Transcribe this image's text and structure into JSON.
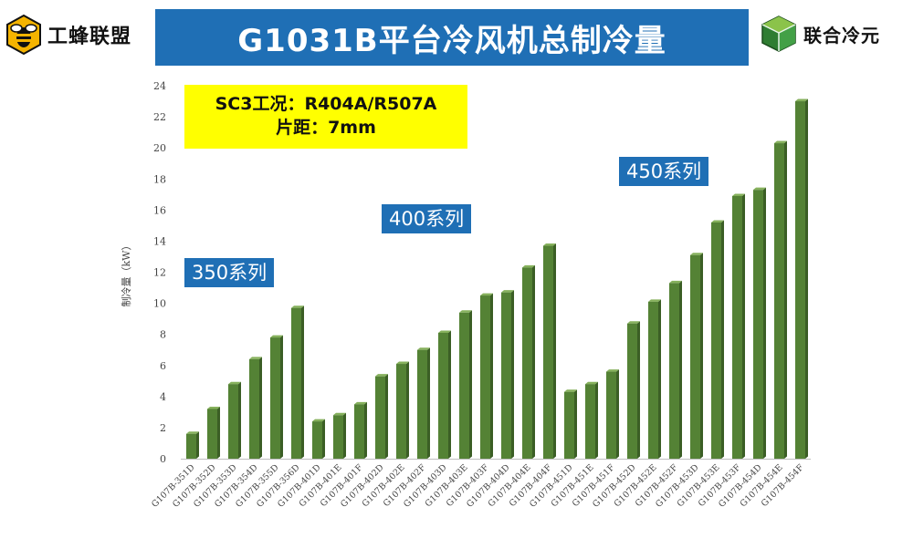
{
  "header": {
    "left_logo_text": "工蜂联盟",
    "right_logo_text": "联合冷元",
    "title": "G1031B平台冷风机总制冷量"
  },
  "info": {
    "line1": "SC3工况：R404A/R507A",
    "line2": "片距：7mm"
  },
  "series_labels": {
    "s350": "350系列",
    "s400": "400系列",
    "s450": "450系列"
  },
  "colors": {
    "bar": "#548235",
    "bar_dark": "#3b5e25",
    "bar_top": "#86b15c",
    "title_bg": "#1f6fb5",
    "info_bg": "#ffff00"
  },
  "icons": {
    "left_logo": "bee-icon",
    "right_logo": "cube-icon"
  },
  "chart_data": {
    "type": "bar",
    "ylabel": "制冷量（kW）",
    "ylim": [
      0,
      24
    ],
    "yticks": [
      0,
      2,
      4,
      6,
      8,
      10,
      12,
      14,
      16,
      18,
      20,
      22,
      24
    ],
    "grid": false,
    "categories": [
      "G107B-351D",
      "G107B-352D",
      "G107B-353D",
      "G107B-354D",
      "G107B-355D",
      "G107B-356D",
      "G107B-401D",
      "G107B-401E",
      "G107B-401F",
      "G107B-402D",
      "G107B-402E",
      "G107B-402F",
      "G107B-403D",
      "G107B-403E",
      "G107B-403F",
      "G107B-404D",
      "G107B-404E",
      "G107B-404F",
      "G107B-451D",
      "G107B-451E",
      "G107B-451F",
      "G107B-452D",
      "G107B-452E",
      "G107B-452F",
      "G107B-453D",
      "G107B-453E",
      "G107B-453F",
      "G107B-454D",
      "G107B-454E",
      "G107B-454F"
    ],
    "values": [
      1.6,
      3.2,
      4.8,
      6.4,
      7.8,
      9.7,
      2.4,
      2.8,
      3.5,
      5.3,
      6.1,
      7.0,
      8.1,
      9.4,
      10.5,
      10.7,
      12.3,
      13.7,
      4.3,
      4.8,
      5.6,
      8.7,
      10.1,
      11.3,
      13.1,
      15.2,
      16.9,
      17.3,
      20.3,
      23.0
    ]
  }
}
